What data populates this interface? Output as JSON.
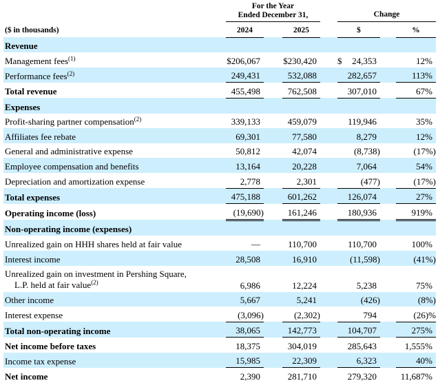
{
  "header": {
    "period_title_line1": "For the Year",
    "period_title_line2": "Ended December 31,",
    "change_title": "Change",
    "units_label": "($ in thousands)",
    "col_2024": "2024",
    "col_2025": "2025",
    "col_change_dollar": "$",
    "col_change_pct": "%"
  },
  "colors": {
    "row_shading": "#cdeefd"
  },
  "rows": [
    {
      "type": "section",
      "label": "Revenue",
      "shaded": true
    },
    {
      "type": "line",
      "label": "Management fees",
      "footnote": "(1)",
      "dollar_sign": true,
      "values": [
        "$206,067",
        "$230,420",
        "24,353",
        "12%"
      ],
      "shaded": false
    },
    {
      "type": "line",
      "label": "Performance fees",
      "footnote": "(2)",
      "values": [
        "249,431",
        "532,088",
        "282,657",
        "113%"
      ],
      "shaded": true,
      "rule_below": true
    },
    {
      "type": "total",
      "label": "Total revenue",
      "values": [
        "455,498",
        "762,508",
        "307,010",
        "67%"
      ],
      "shaded": false,
      "rule_below": true
    },
    {
      "type": "section",
      "label": "Expenses",
      "shaded": true
    },
    {
      "type": "line",
      "label": "Profit-sharing partner compensation",
      "footnote": "(2)",
      "values": [
        "339,133",
        "459,079",
        "119,946",
        "35%"
      ],
      "shaded": false
    },
    {
      "type": "line",
      "label": "Affiliates fee rebate",
      "values": [
        "69,301",
        "77,580",
        "8,279",
        "12%"
      ],
      "shaded": true
    },
    {
      "type": "line",
      "label": "General and administrative expense",
      "values": [
        "50,812",
        "42,074",
        "(8,738)",
        "(17%)"
      ],
      "shaded": false
    },
    {
      "type": "line",
      "label": "Employee compensation and benefits",
      "values": [
        "13,164",
        "20,228",
        "7,064",
        "54%"
      ],
      "shaded": true
    },
    {
      "type": "line",
      "label": "Depreciation and amortization expense",
      "values": [
        "2,778",
        "2,301",
        "(477)",
        "(17%)"
      ],
      "shaded": false,
      "rule_below": true
    },
    {
      "type": "total",
      "label": "Total expenses",
      "values": [
        "475,188",
        "601,262",
        "126,074",
        "27%"
      ],
      "shaded": true,
      "rule_below": true
    },
    {
      "type": "total",
      "label": "Operating income (loss)",
      "values": [
        "(19,690)",
        "161,246",
        "180,936",
        "919%"
      ],
      "shaded": false,
      "double_rule_below": true
    },
    {
      "type": "section",
      "label": "Non-operating income (expenses)",
      "shaded": true
    },
    {
      "type": "line",
      "label": "Unrealized gain on HHH shares held at fair value",
      "values": [
        "—",
        "110,700",
        "110,700",
        "100%"
      ],
      "shaded": false
    },
    {
      "type": "line",
      "label": "Interest income",
      "values": [
        "28,508",
        "16,910",
        "(11,598)",
        "(41%)"
      ],
      "shaded": true
    },
    {
      "type": "line",
      "label": "Unrealized gain on investment in Pershing Square,",
      "label_line2": "L.P. held at fair value",
      "footnote": "(2)",
      "values": [
        "6,986",
        "12,224",
        "5,238",
        "75%"
      ],
      "shaded": false
    },
    {
      "type": "line",
      "label": "Other income",
      "values": [
        "5,667",
        "5,241",
        "(426)",
        "(8%)"
      ],
      "shaded": true
    },
    {
      "type": "line",
      "label": "Interest expense",
      "values": [
        "(3,096)",
        "(2,302)",
        "794",
        "(26)%"
      ],
      "shaded": false,
      "rule_below": true
    },
    {
      "type": "total",
      "label": "Total non-operating income",
      "values": [
        "38,065",
        "142,773",
        "104,707",
        "275%"
      ],
      "shaded": true,
      "rule_below": true
    },
    {
      "type": "total",
      "label": "Net income before taxes",
      "values": [
        "18,375",
        "304,019",
        "285,643",
        "1,555%"
      ],
      "shaded": false
    },
    {
      "type": "line",
      "label": "Income tax expense",
      "values": [
        "15,985",
        "22,309",
        "6,323",
        "40%"
      ],
      "shaded": true,
      "rule_below": true
    },
    {
      "type": "total",
      "label": "Net income",
      "values": [
        "2,390",
        "281,710",
        "279,320",
        "11,687%"
      ],
      "shaded": false
    }
  ]
}
